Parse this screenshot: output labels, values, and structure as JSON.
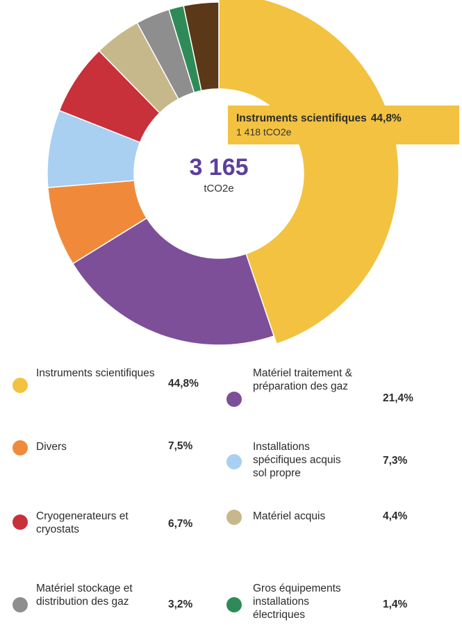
{
  "chart_data": {
    "type": "pie",
    "variant": "donut",
    "total": "3 165",
    "unit": "tCO2e",
    "categories": [
      "Instruments scientifiques",
      "Matériel traitement & préparation des gaz",
      "Divers",
      "Installations spécifiques acquis sol propre",
      "Cryogenerateurs et cryostats",
      "Matériel acquis",
      "Matériel stockage et distribution des gaz",
      "Gros équipements installations électriques",
      ""
    ],
    "values": [
      44.8,
      21.4,
      7.5,
      7.3,
      6.7,
      4.4,
      3.2,
      1.4,
      3.3
    ],
    "value_labels": [
      "44,8%",
      "21,4%",
      "7,5%",
      "7,3%",
      "6,7%",
      "4,4%",
      "3,2%",
      "1,4%",
      ""
    ],
    "colors": [
      "#f2c240",
      "#7d4f98",
      "#f08a3a",
      "#a9cff1",
      "#c8303a",
      "#c6b88a",
      "#8e8e8e",
      "#2e8b57",
      "#5a3818"
    ],
    "legend_placement": "bottom",
    "tooltip": {
      "name": "Instruments scientifiques",
      "percent": "44,8%",
      "value": "1 418 tCO2e"
    }
  }
}
